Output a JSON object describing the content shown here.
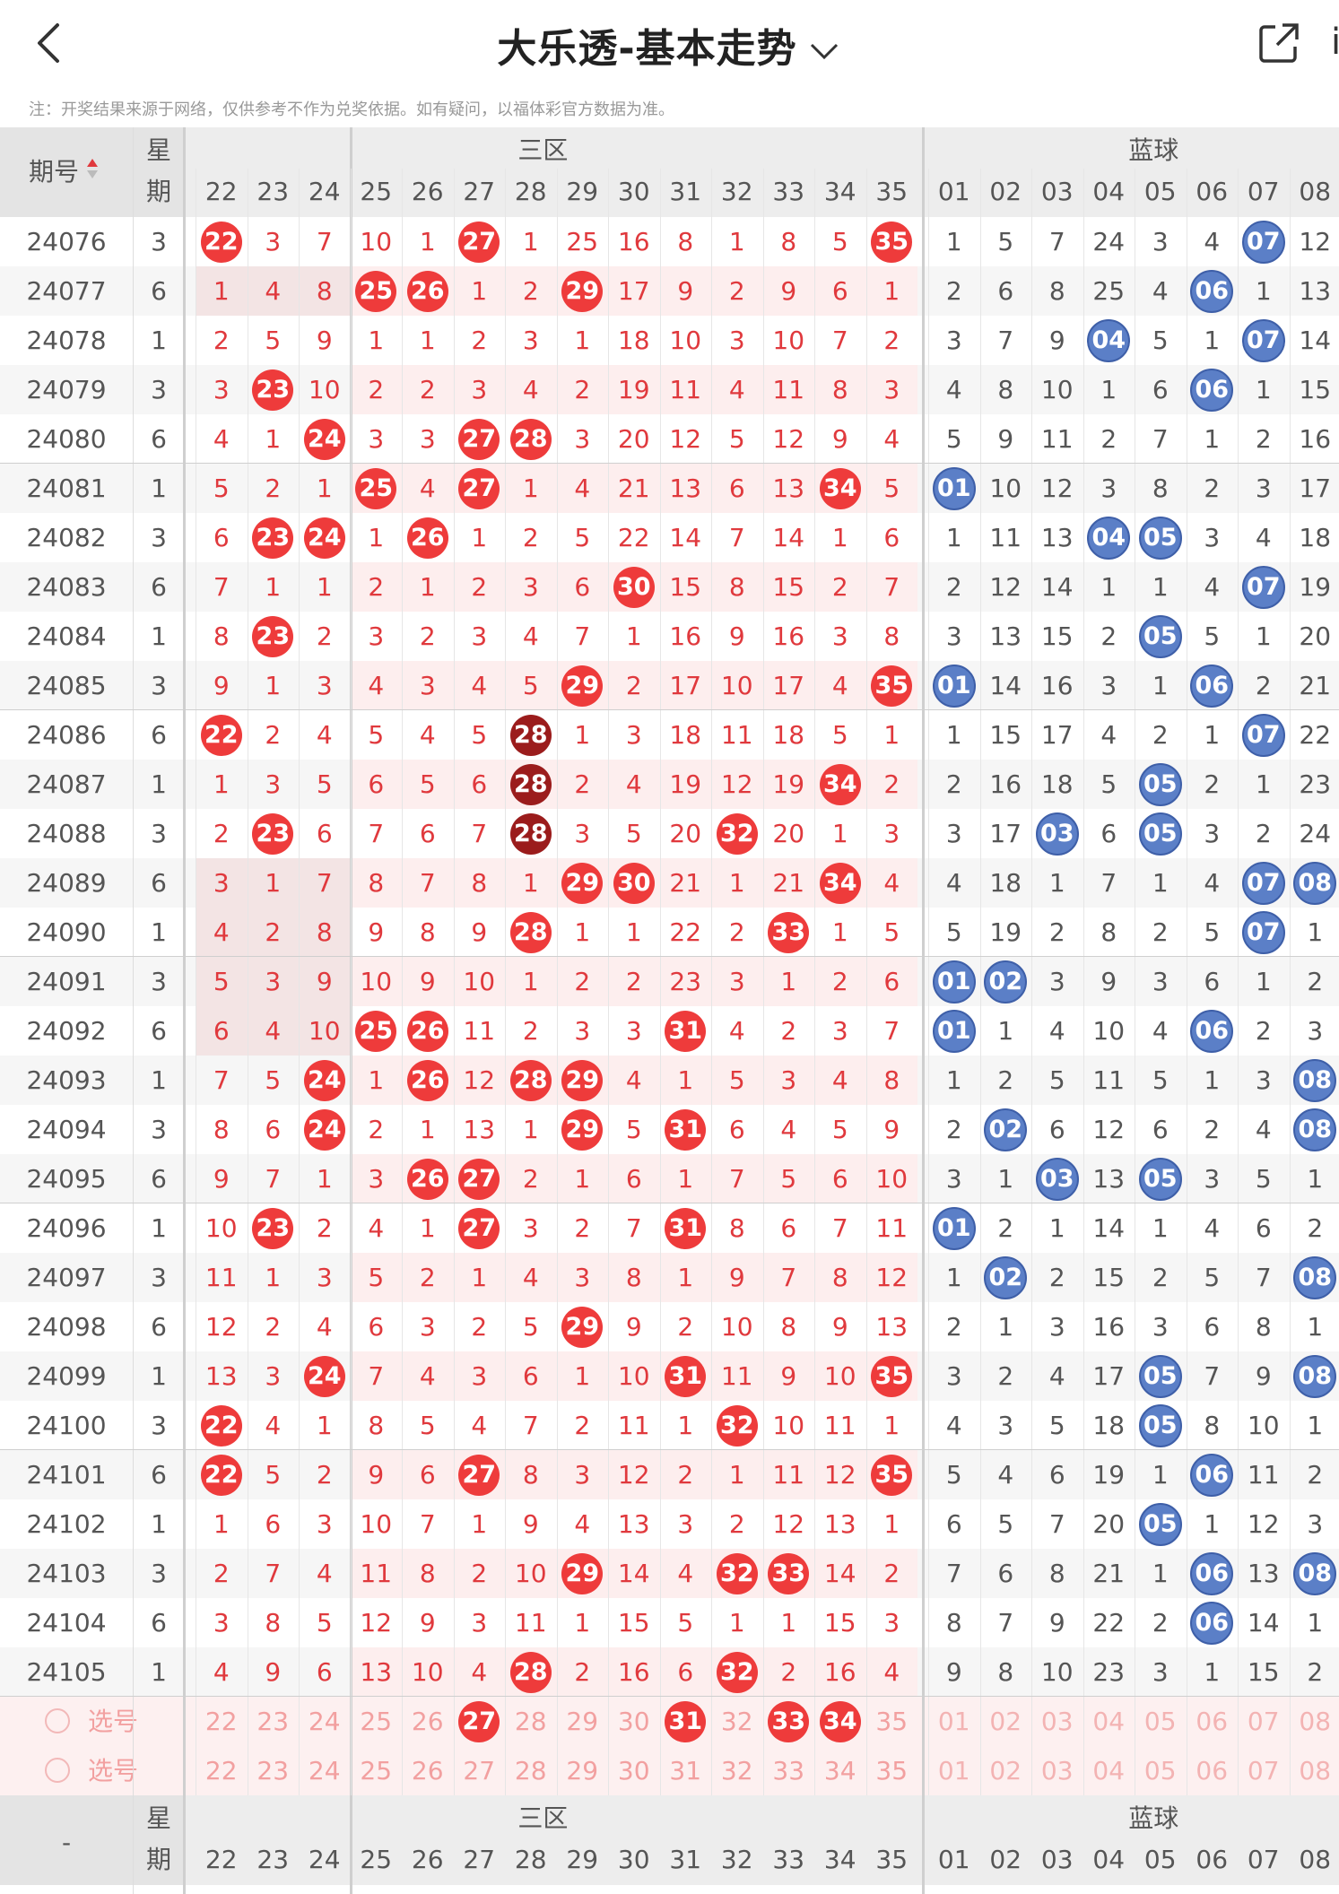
{
  "header": {
    "title": "大乐透-基本走势",
    "cut_label": "i"
  },
  "note": "注：开奖结果来源于网络，仅供参考不作为兑奖依据。如有疑问，以福体彩官方数据为准。",
  "table": {
    "col_period": "期号",
    "col_week_1": "星",
    "col_week_2": "期",
    "zone3_label": "三区",
    "blue_label": "蓝球",
    "front_cols": [
      "22",
      "23",
      "24",
      "25",
      "26",
      "27",
      "28",
      "29",
      "30",
      "31",
      "32",
      "33",
      "34",
      "35"
    ],
    "back_cols": [
      "01",
      "02",
      "03",
      "04",
      "05",
      "06",
      "07",
      "08"
    ],
    "pick_label": "选号",
    "footer_dash": "-",
    "rows": [
      {
        "p": "24076",
        "w": "3",
        "f": [
          "22",
          "3",
          "7",
          "10",
          "1",
          "27",
          "1",
          "25",
          "16",
          "8",
          "1",
          "8",
          "5",
          "35"
        ],
        "b": [
          "1",
          "5",
          "7",
          "24",
          "3",
          "4",
          "07",
          "12"
        ]
      },
      {
        "p": "24077",
        "w": "6",
        "f": [
          "1",
          "4",
          "8",
          "25",
          "26",
          "1",
          "2",
          "29",
          "17",
          "9",
          "2",
          "9",
          "6",
          "1"
        ],
        "b": [
          "2",
          "6",
          "8",
          "25",
          "4",
          "06",
          "1",
          "13"
        ]
      },
      {
        "p": "24078",
        "w": "1",
        "f": [
          "2",
          "5",
          "9",
          "1",
          "1",
          "2",
          "3",
          "1",
          "18",
          "10",
          "3",
          "10",
          "7",
          "2"
        ],
        "b": [
          "3",
          "7",
          "9",
          "04",
          "5",
          "1",
          "07",
          "14"
        ]
      },
      {
        "p": "24079",
        "w": "3",
        "f": [
          "3",
          "23",
          "10",
          "2",
          "2",
          "3",
          "4",
          "2",
          "19",
          "11",
          "4",
          "11",
          "8",
          "3"
        ],
        "b": [
          "4",
          "8",
          "10",
          "1",
          "6",
          "06",
          "1",
          "15"
        ]
      },
      {
        "p": "24080",
        "w": "6",
        "f": [
          "4",
          "1",
          "24",
          "3",
          "3",
          "27",
          "28",
          "3",
          "20",
          "12",
          "5",
          "12",
          "9",
          "4"
        ],
        "b": [
          "5",
          "9",
          "11",
          "2",
          "7",
          "1",
          "2",
          "16"
        ]
      },
      {
        "p": "24081",
        "w": "1",
        "f": [
          "5",
          "2",
          "1",
          "25",
          "4",
          "27",
          "1",
          "4",
          "21",
          "13",
          "6",
          "13",
          "34",
          "5"
        ],
        "b": [
          "01",
          "10",
          "12",
          "3",
          "8",
          "2",
          "3",
          "17"
        ]
      },
      {
        "p": "24082",
        "w": "3",
        "f": [
          "6",
          "23",
          "24",
          "1",
          "26",
          "1",
          "2",
          "5",
          "22",
          "14",
          "7",
          "14",
          "1",
          "6"
        ],
        "b": [
          "1",
          "11",
          "13",
          "04",
          "05",
          "3",
          "4",
          "18"
        ]
      },
      {
        "p": "24083",
        "w": "6",
        "f": [
          "7",
          "1",
          "1",
          "2",
          "1",
          "2",
          "3",
          "6",
          "30",
          "15",
          "8",
          "15",
          "2",
          "7"
        ],
        "b": [
          "2",
          "12",
          "14",
          "1",
          "1",
          "4",
          "07",
          "19"
        ]
      },
      {
        "p": "24084",
        "w": "1",
        "f": [
          "8",
          "23",
          "2",
          "3",
          "2",
          "3",
          "4",
          "7",
          "1",
          "16",
          "9",
          "16",
          "3",
          "8"
        ],
        "b": [
          "3",
          "13",
          "15",
          "2",
          "05",
          "5",
          "1",
          "20"
        ]
      },
      {
        "p": "24085",
        "w": "3",
        "f": [
          "9",
          "1",
          "3",
          "4",
          "3",
          "4",
          "5",
          "29",
          "2",
          "17",
          "10",
          "17",
          "4",
          "35"
        ],
        "b": [
          "01",
          "14",
          "16",
          "3",
          "1",
          "06",
          "2",
          "21"
        ]
      },
      {
        "p": "24086",
        "w": "6",
        "f": [
          "22",
          "2",
          "4",
          "5",
          "4",
          "5",
          "28",
          "1",
          "3",
          "18",
          "11",
          "18",
          "5",
          "1"
        ],
        "b": [
          "1",
          "15",
          "17",
          "4",
          "2",
          "1",
          "07",
          "22"
        ]
      },
      {
        "p": "24087",
        "w": "1",
        "f": [
          "1",
          "3",
          "5",
          "6",
          "5",
          "6",
          "28",
          "2",
          "4",
          "19",
          "12",
          "19",
          "34",
          "2"
        ],
        "b": [
          "2",
          "16",
          "18",
          "5",
          "05",
          "2",
          "1",
          "23"
        ]
      },
      {
        "p": "24088",
        "w": "3",
        "f": [
          "2",
          "23",
          "6",
          "7",
          "6",
          "7",
          "28",
          "3",
          "5",
          "20",
          "32",
          "20",
          "1",
          "3"
        ],
        "b": [
          "3",
          "17",
          "03",
          "6",
          "05",
          "3",
          "2",
          "24"
        ]
      },
      {
        "p": "24089",
        "w": "6",
        "f": [
          "3",
          "1",
          "7",
          "8",
          "7",
          "8",
          "1",
          "29",
          "30",
          "21",
          "1",
          "21",
          "34",
          "4"
        ],
        "b": [
          "4",
          "18",
          "1",
          "7",
          "1",
          "4",
          "07",
          "08"
        ]
      },
      {
        "p": "24090",
        "w": "1",
        "f": [
          "4",
          "2",
          "8",
          "9",
          "8",
          "9",
          "28",
          "1",
          "1",
          "22",
          "2",
          "33",
          "1",
          "5"
        ],
        "b": [
          "5",
          "19",
          "2",
          "8",
          "2",
          "5",
          "07",
          "1"
        ]
      },
      {
        "p": "24091",
        "w": "3",
        "f": [
          "5",
          "3",
          "9",
          "10",
          "9",
          "10",
          "1",
          "2",
          "2",
          "23",
          "3",
          "1",
          "2",
          "6"
        ],
        "b": [
          "01",
          "02",
          "3",
          "9",
          "3",
          "6",
          "1",
          "2"
        ]
      },
      {
        "p": "24092",
        "w": "6",
        "f": [
          "6",
          "4",
          "10",
          "25",
          "26",
          "11",
          "2",
          "3",
          "3",
          "31",
          "4",
          "2",
          "3",
          "7"
        ],
        "b": [
          "01",
          "1",
          "4",
          "10",
          "4",
          "06",
          "2",
          "3"
        ]
      },
      {
        "p": "24093",
        "w": "1",
        "f": [
          "7",
          "5",
          "24",
          "1",
          "26",
          "12",
          "28",
          "29",
          "4",
          "1",
          "5",
          "3",
          "4",
          "8"
        ],
        "b": [
          "1",
          "2",
          "5",
          "11",
          "5",
          "1",
          "3",
          "08"
        ]
      },
      {
        "p": "24094",
        "w": "3",
        "f": [
          "8",
          "6",
          "24",
          "2",
          "1",
          "13",
          "1",
          "29",
          "5",
          "31",
          "6",
          "4",
          "5",
          "9"
        ],
        "b": [
          "2",
          "02",
          "6",
          "12",
          "6",
          "2",
          "4",
          "08"
        ]
      },
      {
        "p": "24095",
        "w": "6",
        "f": [
          "9",
          "7",
          "1",
          "3",
          "26",
          "27",
          "2",
          "1",
          "6",
          "1",
          "7",
          "5",
          "6",
          "10"
        ],
        "b": [
          "3",
          "1",
          "03",
          "13",
          "05",
          "3",
          "5",
          "1"
        ]
      },
      {
        "p": "24096",
        "w": "1",
        "f": [
          "10",
          "23",
          "2",
          "4",
          "1",
          "27",
          "3",
          "2",
          "7",
          "31",
          "8",
          "6",
          "7",
          "11"
        ],
        "b": [
          "01",
          "2",
          "1",
          "14",
          "1",
          "4",
          "6",
          "2"
        ]
      },
      {
        "p": "24097",
        "w": "3",
        "f": [
          "11",
          "1",
          "3",
          "5",
          "2",
          "1",
          "4",
          "3",
          "8",
          "1",
          "9",
          "7",
          "8",
          "12"
        ],
        "b": [
          "1",
          "02",
          "2",
          "15",
          "2",
          "5",
          "7",
          "08"
        ]
      },
      {
        "p": "24098",
        "w": "6",
        "f": [
          "12",
          "2",
          "4",
          "6",
          "3",
          "2",
          "5",
          "29",
          "9",
          "2",
          "10",
          "8",
          "9",
          "13"
        ],
        "b": [
          "2",
          "1",
          "3",
          "16",
          "3",
          "6",
          "8",
          "1"
        ]
      },
      {
        "p": "24099",
        "w": "1",
        "f": [
          "13",
          "3",
          "24",
          "7",
          "4",
          "3",
          "6",
          "1",
          "10",
          "31",
          "11",
          "9",
          "10",
          "35"
        ],
        "b": [
          "3",
          "2",
          "4",
          "17",
          "05",
          "7",
          "9",
          "08"
        ]
      },
      {
        "p": "24100",
        "w": "3",
        "f": [
          "22",
          "4",
          "1",
          "8",
          "5",
          "4",
          "7",
          "2",
          "11",
          "1",
          "32",
          "10",
          "11",
          "1"
        ],
        "b": [
          "4",
          "3",
          "5",
          "18",
          "05",
          "8",
          "10",
          "1"
        ]
      },
      {
        "p": "24101",
        "w": "6",
        "f": [
          "22",
          "5",
          "2",
          "9",
          "6",
          "27",
          "8",
          "3",
          "12",
          "2",
          "1",
          "11",
          "12",
          "35"
        ],
        "b": [
          "5",
          "4",
          "6",
          "19",
          "1",
          "06",
          "11",
          "2"
        ]
      },
      {
        "p": "24102",
        "w": "1",
        "f": [
          "1",
          "6",
          "3",
          "10",
          "7",
          "1",
          "9",
          "4",
          "13",
          "3",
          "2",
          "12",
          "13",
          "1"
        ],
        "b": [
          "6",
          "5",
          "7",
          "20",
          "05",
          "1",
          "12",
          "3"
        ]
      },
      {
        "p": "24103",
        "w": "3",
        "f": [
          "2",
          "7",
          "4",
          "11",
          "8",
          "2",
          "10",
          "29",
          "14",
          "4",
          "32",
          "33",
          "14",
          "2"
        ],
        "b": [
          "7",
          "6",
          "8",
          "21",
          "1",
          "06",
          "13",
          "08"
        ]
      },
      {
        "p": "24104",
        "w": "6",
        "f": [
          "3",
          "8",
          "5",
          "12",
          "9",
          "3",
          "11",
          "1",
          "15",
          "5",
          "1",
          "1",
          "15",
          "3"
        ],
        "b": [
          "8",
          "7",
          "9",
          "22",
          "2",
          "06",
          "14",
          "1"
        ]
      },
      {
        "p": "24105",
        "w": "1",
        "f": [
          "4",
          "9",
          "6",
          "13",
          "10",
          "4",
          "28",
          "2",
          "16",
          "6",
          "32",
          "2",
          "16",
          "4"
        ],
        "b": [
          "9",
          "8",
          "10",
          "23",
          "3",
          "1",
          "15",
          "2"
        ]
      }
    ]
  }
}
